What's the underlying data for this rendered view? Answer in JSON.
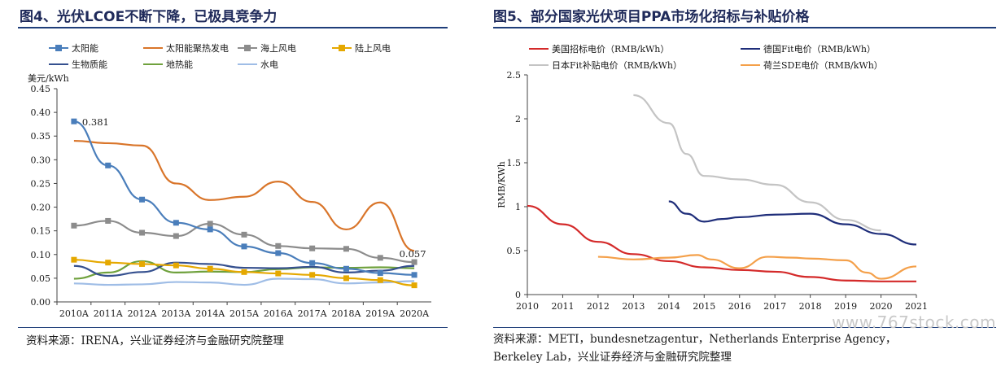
{
  "left": {
    "title": "图4、光伏LCOE不断下降，已极具竞争力",
    "source": "资料来源：IRENA，兴业证券经济与金融研究院整理",
    "chart_data": {
      "type": "line",
      "ylabel": "美元/kWh",
      "ylim": [
        0,
        0.45
      ],
      "yticks": [
        "0.00",
        "0.05",
        "0.10",
        "0.15",
        "0.20",
        "0.25",
        "0.30",
        "0.35",
        "0.40",
        "0.45"
      ],
      "categories": [
        "2010A",
        "2011A",
        "2012A",
        "2013A",
        "2014A",
        "2015A",
        "2016A",
        "2017A",
        "2018A",
        "2019A",
        "2020A"
      ],
      "series": [
        {
          "name": "太阳能",
          "color": "#4a7ebb",
          "marker": "square",
          "values": [
            0.381,
            0.288,
            0.216,
            0.167,
            0.153,
            0.117,
            0.103,
            0.082,
            0.07,
            0.061,
            0.057
          ]
        },
        {
          "name": "太阳能聚热发电",
          "color": "#d9752a",
          "marker": "none",
          "values": [
            0.34,
            0.335,
            0.33,
            0.25,
            0.215,
            0.222,
            0.254,
            0.211,
            0.153,
            0.21,
            0.108
          ]
        },
        {
          "name": "海上风电",
          "color": "#8c8c8c",
          "marker": "square",
          "values": [
            0.161,
            0.171,
            0.146,
            0.139,
            0.165,
            0.142,
            0.118,
            0.113,
            0.112,
            0.093,
            0.084
          ]
        },
        {
          "name": "陆上风电",
          "color": "#e5a800",
          "marker": "square",
          "values": [
            0.089,
            0.083,
            0.08,
            0.077,
            0.07,
            0.063,
            0.06,
            0.057,
            0.05,
            0.046,
            0.035
          ]
        },
        {
          "name": "生物质能",
          "color": "#35508f",
          "marker": "none",
          "values": [
            0.076,
            0.055,
            0.063,
            0.083,
            0.08,
            0.072,
            0.071,
            0.074,
            0.062,
            0.066,
            0.076
          ]
        },
        {
          "name": "地热能",
          "color": "#6fa13d",
          "marker": "none",
          "values": [
            0.049,
            0.062,
            0.086,
            0.062,
            0.064,
            0.063,
            0.069,
            0.073,
            0.072,
            0.073,
            0.071
          ]
        },
        {
          "name": "水电",
          "color": "#9fbde6",
          "marker": "none",
          "values": [
            0.039,
            0.036,
            0.037,
            0.042,
            0.041,
            0.036,
            0.049,
            0.048,
            0.039,
            0.041,
            0.044
          ]
        }
      ],
      "annotations": [
        {
          "series": "太阳能",
          "category": "2010A",
          "text": "0.381"
        },
        {
          "series": "太阳能",
          "category": "2020A",
          "text": "0.057"
        }
      ]
    }
  },
  "right": {
    "title": "图5、部分国家光伏项目PPA市场化招标与补贴价格",
    "source_line1": "资料来源：METI，bundesnetzagentur，Netherlands Enterprise Agency，",
    "source_line2": "Berkeley Lab，兴业证券经济与金融研究院整理",
    "chart_data": {
      "type": "line",
      "ylabel": "RMB/KWh",
      "xlim": [
        2010,
        2021
      ],
      "ylim": [
        0,
        2.5
      ],
      "yticks": [
        "0",
        "0.5",
        "1",
        "1.5",
        "2",
        "2.5"
      ],
      "xticks": [
        "2010",
        "2011",
        "2012",
        "2013",
        "2014",
        "2015",
        "2016",
        "2017",
        "2018",
        "2019",
        "2020",
        "2021"
      ],
      "series": [
        {
          "name": "美国招标电价（RMB/kWh）",
          "color": "#d42a2a",
          "x": [
            2010,
            2011,
            2012,
            2013,
            2014,
            2015,
            2016,
            2017,
            2018,
            2019,
            2020,
            2021
          ],
          "values": [
            1.01,
            0.8,
            0.6,
            0.46,
            0.38,
            0.31,
            0.28,
            0.26,
            0.2,
            0.16,
            0.15,
            0.15
          ]
        },
        {
          "name": "德国Fit电价（RMB/kWh）",
          "color": "#1f2e7a",
          "x": [
            2014,
            2014.5,
            2015,
            2015.5,
            2016,
            2017,
            2018,
            2019,
            2020,
            2021
          ],
          "values": [
            1.06,
            0.92,
            0.83,
            0.86,
            0.88,
            0.91,
            0.92,
            0.8,
            0.69,
            0.57
          ]
        },
        {
          "name": "日本Fit补贴电价（RMB/kWh）",
          "color": "#c4c4c4",
          "x": [
            2013,
            2014,
            2014.5,
            2015,
            2016,
            2017,
            2018,
            2019,
            2020
          ],
          "values": [
            2.27,
            1.95,
            1.6,
            1.35,
            1.31,
            1.25,
            1.05,
            0.85,
            0.73
          ]
        },
        {
          "name": "荷兰SDE电价（RMB/kWh）",
          "color": "#f4a04a",
          "x": [
            2012,
            2013,
            2014,
            2014.8,
            2015.2,
            2016,
            2016.8,
            2017.5,
            2018,
            2019,
            2019.6,
            2020,
            2021
          ],
          "values": [
            0.43,
            0.4,
            0.42,
            0.45,
            0.4,
            0.3,
            0.43,
            0.42,
            0.41,
            0.39,
            0.25,
            0.18,
            0.32
          ]
        }
      ]
    }
  },
  "watermark": "www.767stock.com"
}
